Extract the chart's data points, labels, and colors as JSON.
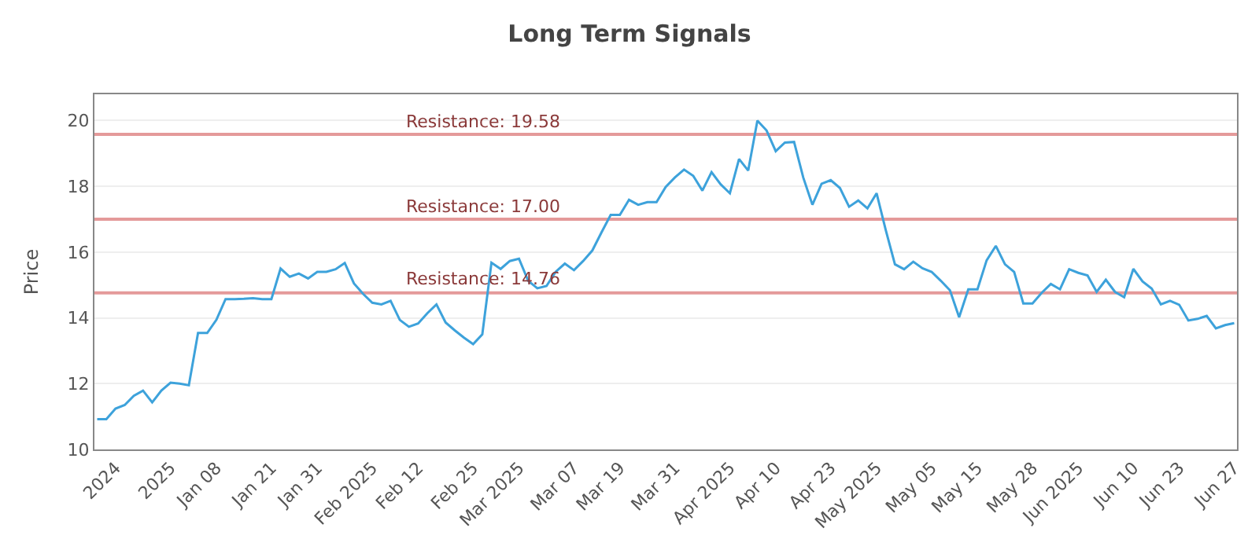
{
  "chart_data": {
    "type": "line",
    "title": "Long Term Signals",
    "ylabel": "Price",
    "categories": [
      null,
      null,
      "2024",
      null,
      null,
      null,
      null,
      null,
      "2025",
      null,
      null,
      null,
      null,
      "Jan 08",
      null,
      null,
      null,
      null,
      null,
      "Jan 21",
      null,
      null,
      null,
      null,
      "Jan 31",
      null,
      null,
      null,
      null,
      null,
      "Feb 2025",
      null,
      null,
      null,
      null,
      "Feb 12",
      null,
      null,
      null,
      null,
      null,
      "Feb 25",
      null,
      null,
      null,
      null,
      "Mar 2025",
      null,
      null,
      null,
      null,
      null,
      "Mar 07",
      null,
      null,
      null,
      null,
      "Mar 19",
      null,
      null,
      null,
      null,
      null,
      "Mar 31",
      null,
      null,
      null,
      null,
      null,
      "Apr 2025",
      null,
      null,
      null,
      null,
      "Apr 10",
      null,
      null,
      null,
      null,
      null,
      "Apr 23",
      null,
      null,
      null,
      null,
      "May 2025",
      null,
      null,
      null,
      null,
      null,
      "May 05",
      null,
      null,
      null,
      null,
      "May 15",
      null,
      null,
      null,
      null,
      null,
      "May 28",
      null,
      null,
      null,
      null,
      "Jun 2025",
      null,
      null,
      null,
      null,
      null,
      "Jun 10",
      null,
      null,
      null,
      null,
      "Jun 23",
      null,
      null,
      null,
      null,
      null,
      "Jun 27"
    ],
    "series": [
      {
        "color": "#3da2db",
        "values": [
          10.92,
          10.92,
          11.24,
          11.35,
          11.63,
          11.79,
          11.43,
          11.79,
          12.03,
          12.0,
          11.95,
          13.54,
          13.54,
          13.94,
          14.57,
          14.57,
          14.58,
          14.6,
          14.57,
          14.57,
          15.5,
          15.25,
          15.35,
          15.2,
          15.4,
          15.4,
          15.48,
          15.67,
          15.05,
          14.73,
          14.46,
          14.41,
          14.52,
          13.94,
          13.73,
          13.83,
          14.14,
          14.41,
          13.86,
          13.62,
          13.4,
          13.2,
          13.5,
          15.68,
          15.49,
          15.73,
          15.8,
          15.13,
          14.9,
          14.97,
          15.4,
          15.65,
          15.45,
          15.73,
          16.05,
          16.6,
          17.13,
          17.13,
          17.59,
          17.44,
          17.52,
          17.52,
          17.98,
          18.27,
          18.51,
          18.32,
          17.87,
          18.43,
          18.06,
          17.79,
          18.83,
          18.48,
          20.0,
          19.7,
          19.07,
          19.33,
          19.35,
          18.27,
          17.44,
          18.08,
          18.19,
          17.95,
          17.38,
          17.57,
          17.33,
          17.79,
          16.67,
          15.63,
          15.48,
          15.71,
          15.51,
          15.4,
          15.13,
          14.84,
          14.02,
          14.87,
          14.87,
          15.75,
          16.19,
          15.63,
          15.4,
          14.44,
          14.44,
          14.76,
          15.03,
          14.87,
          15.48,
          15.37,
          15.29,
          14.79,
          15.16,
          14.79,
          14.63,
          15.49,
          15.11,
          14.89,
          14.41,
          14.52,
          14.4,
          13.92,
          13.97,
          14.06,
          13.68,
          13.78,
          13.84
        ]
      }
    ],
    "ylim": [
      10,
      20.8
    ],
    "yticks": [
      10,
      12,
      14,
      16,
      18,
      20
    ],
    "grid": "y",
    "marker": "none",
    "line_style": "solid",
    "ref_lines": [
      {
        "axis": "y",
        "value": 19.58,
        "label": "Resistance: 19.58",
        "color": "#e49a9a"
      },
      {
        "axis": "y",
        "value": 17.0,
        "label": "Resistance: 17.00",
        "color": "#e49a9a"
      },
      {
        "axis": "y",
        "value": 14.76,
        "label": "Resistance: 14.76",
        "color": "#e49a9a"
      }
    ]
  }
}
